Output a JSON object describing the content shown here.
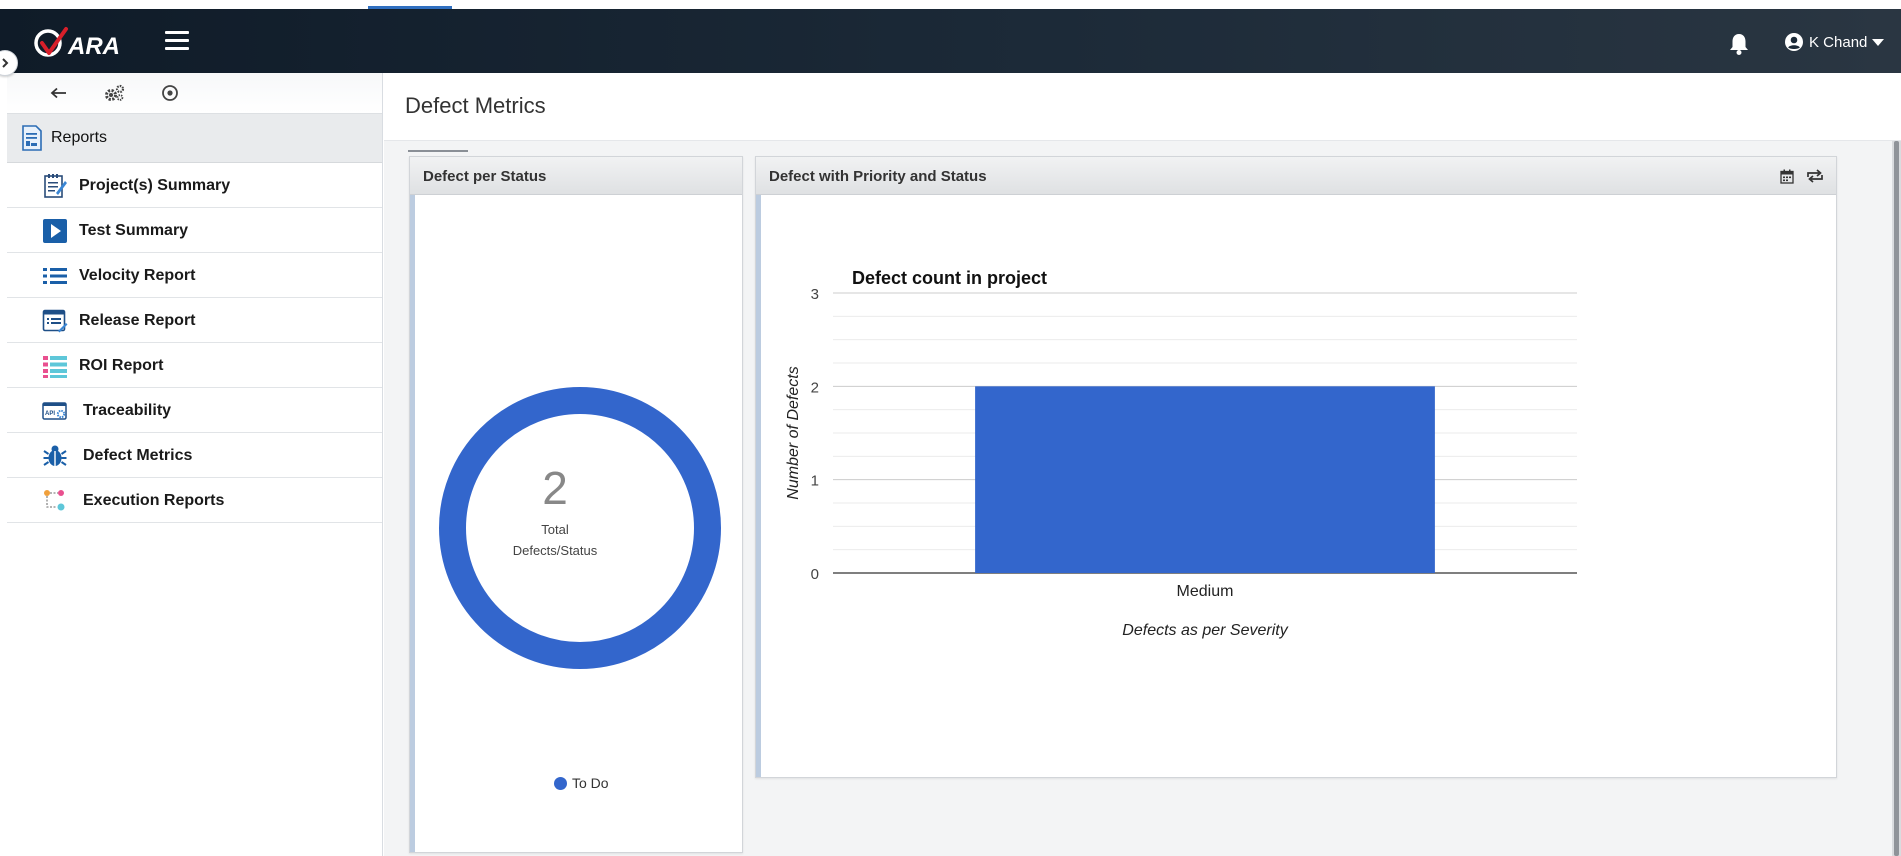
{
  "header": {
    "logo_text": "QARA",
    "user_name": "K Chand"
  },
  "sidebar": {
    "section_title": "Reports",
    "items": [
      {
        "label": "Project(s) Summary",
        "icon": "notepad-icon"
      },
      {
        "label": "Test Summary",
        "icon": "play-icon"
      },
      {
        "label": "Velocity Report",
        "icon": "list-icon"
      },
      {
        "label": "Release Report",
        "icon": "release-list-icon"
      },
      {
        "label": "ROI Report",
        "icon": "roi-icon"
      },
      {
        "label": "Traceability",
        "icon": "api-icon"
      },
      {
        "label": "Defect Metrics",
        "icon": "bug-icon"
      },
      {
        "label": "Execution Reports",
        "icon": "flow-icon"
      }
    ]
  },
  "main": {
    "page_title": "Defect Metrics",
    "panel_status": {
      "title": "Defect per Status",
      "total": "2",
      "caption_line1": "Total",
      "caption_line2": "Defects/Status",
      "legend": [
        {
          "label": "To Do",
          "color": "#3366cc"
        }
      ]
    },
    "panel_priority": {
      "title": "Defect with Priority and Status"
    }
  },
  "colors": {
    "accent": "#2f6fc0",
    "series": "#3366cc",
    "logo_red": "#d81f2a"
  },
  "chart_data": [
    {
      "type": "pie",
      "donut": true,
      "slices": [
        {
          "label": "To Do",
          "value": 2
        }
      ],
      "legend_position": "bottom"
    },
    {
      "type": "bar",
      "title": "Defect count in project",
      "categories": [
        "Medium"
      ],
      "values": [
        2
      ],
      "xlabel": "Defects as per Severity",
      "ylabel": "Number of Defects",
      "ylim": [
        0,
        3
      ],
      "yticks": [
        "0",
        "1",
        "2",
        "3"
      ],
      "grid": true,
      "legend": false
    }
  ]
}
